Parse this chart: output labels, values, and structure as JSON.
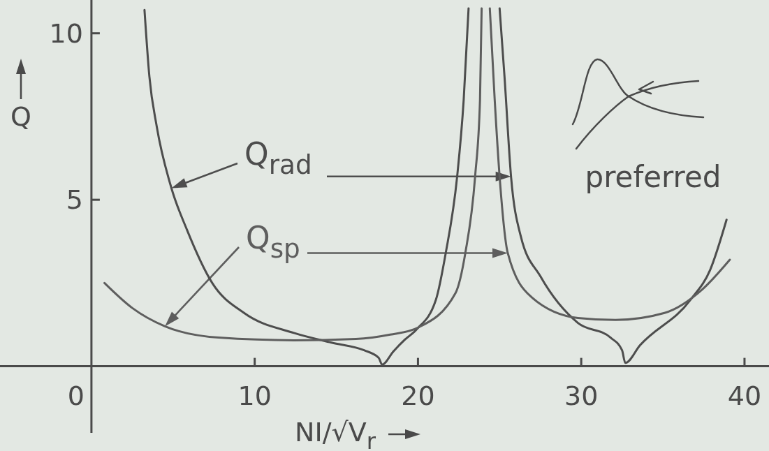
{
  "chart_data": {
    "type": "line",
    "xlabel": "NI/√V$_{r}$",
    "ylabel": "Q",
    "xlim": [
      -5.6,
      41.5
    ],
    "ylim": [
      -2,
      11
    ],
    "xticks": [
      0,
      10,
      20,
      30,
      40
    ],
    "yticks": [
      5,
      10
    ],
    "series": [
      {
        "name": "Q$_{rad}$",
        "color": "#4d4d4d",
        "x": [
          3.25,
          3.55,
          4.0,
          4.9,
          5.85,
          7.4,
          9.35,
          12.4,
          14.7,
          16.7,
          17.6,
          17.8,
          18.5,
          19.2,
          19.9,
          21.1,
          21.7,
          22.4,
          22.8,
          23.1,
          null,
          25.0,
          25.3,
          25.7,
          26.3,
          27.5,
          29.8,
          31.8,
          32.5,
          32.7,
          33.6,
          36.7,
          37.9,
          38.9
        ],
        "values": [
          10.7,
          8.7,
          7.2,
          5.35,
          4.1,
          2.5,
          1.6,
          1.0,
          0.71,
          0.48,
          0.25,
          0.05,
          0.45,
          0.8,
          1.1,
          2.0,
          3.4,
          5.7,
          8.0,
          10.75,
          null,
          10.75,
          8.7,
          5.7,
          3.9,
          2.7,
          1.3,
          0.86,
          0.48,
          0.1,
          0.63,
          2.0,
          2.9,
          4.4
        ]
      },
      {
        "name": "Q$_{sp}$",
        "color": "#5e5e5e",
        "x": [
          0.8,
          2.5,
          4.5,
          7.8,
          12.4,
          16.2,
          18.3,
          20.0,
          22.3,
          22.9,
          23.5,
          23.8,
          23.9,
          null,
          24.4,
          24.7,
          25.0,
          25.5,
          26.9,
          29.8,
          32.1,
          35.1,
          37.4,
          39.1
        ],
        "values": [
          2.5,
          1.75,
          1.2,
          0.86,
          0.78,
          0.82,
          0.95,
          1.16,
          2.2,
          3.4,
          5.7,
          8.0,
          10.75,
          null,
          10.75,
          8.0,
          5.7,
          3.4,
          2.1,
          1.45,
          1.39,
          1.6,
          2.3,
          3.2
        ]
      }
    ],
    "annotations": [
      "preferred"
    ]
  }
}
